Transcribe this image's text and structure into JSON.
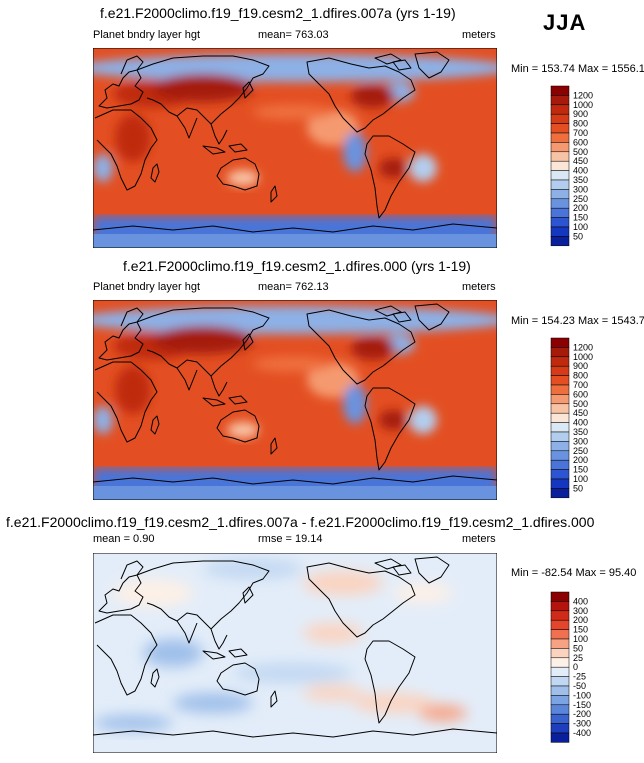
{
  "season": "JJA",
  "chart_data": [
    {
      "type": "heatmap",
      "title": "f.e21.F2000climo.f19_f19.cesm2_1.dfires.007a (yrs 1-19)",
      "variable": "Planet bndry layer hgt",
      "mean_label": "mean= 763.03",
      "units": "meters",
      "minmax_label": "Min = 153.74 Max = 1556.12",
      "min": 153.74,
      "max": 1556.12,
      "mean": 763.03,
      "colorbar_levels": [
        "1200",
        "1000",
        "900",
        "800",
        "700",
        "600",
        "500",
        "450",
        "400",
        "350",
        "300",
        "250",
        "200",
        "150",
        "100",
        "50"
      ],
      "colors": [
        "#8b0000",
        "#a51a0a",
        "#bf2a0e",
        "#d43b16",
        "#e34f22",
        "#ef6e3e",
        "#f59a70",
        "#f8c3a5",
        "#fbe5d6",
        "#dae8f6",
        "#b3cdee",
        "#8db0e6",
        "#6a93df",
        "#4a74d9",
        "#2d55d2",
        "#1537bf",
        "#0a1f9c"
      ],
      "lon_range": [
        0,
        360
      ],
      "lat_range": [
        -90,
        90
      ]
    },
    {
      "type": "heatmap",
      "title": "f.e21.F2000climo.f19_f19.cesm2_1.dfires.000 (yrs 1-19)",
      "variable": "Planet bndry layer hgt",
      "mean_label": "mean= 762.13",
      "units": "meters",
      "minmax_label": "Min = 154.23 Max = 1543.76",
      "min": 154.23,
      "max": 1543.76,
      "mean": 762.13,
      "colorbar_levels": [
        "1200",
        "1000",
        "900",
        "800",
        "700",
        "600",
        "500",
        "450",
        "400",
        "350",
        "300",
        "250",
        "200",
        "150",
        "100",
        "50"
      ],
      "colors": [
        "#8b0000",
        "#a51a0a",
        "#bf2a0e",
        "#d43b16",
        "#e34f22",
        "#ef6e3e",
        "#f59a70",
        "#f8c3a5",
        "#fbe5d6",
        "#dae8f6",
        "#b3cdee",
        "#8db0e6",
        "#6a93df",
        "#4a74d9",
        "#2d55d2",
        "#1537bf",
        "#0a1f9c"
      ],
      "lon_range": [
        0,
        360
      ],
      "lat_range": [
        -90,
        90
      ]
    },
    {
      "type": "heatmap",
      "title": "f.e21.F2000climo.f19_f19.cesm2_1.dfires.007a - f.e21.F2000climo.f19_f19.cesm2_1.dfires.000",
      "mean_label": "mean =   0.90",
      "rmse_label": "rmse =  19.14",
      "units": "meters",
      "minmax_label": "Min = -82.54 Max =  95.40",
      "min": -82.54,
      "max": 95.4,
      "mean": 0.9,
      "rmse": 19.14,
      "colorbar_levels": [
        "400",
        "300",
        "200",
        "150",
        "100",
        "50",
        "25",
        "0",
        "-25",
        "-50",
        "-100",
        "-150",
        "-200",
        "-300",
        "-400"
      ],
      "colors": [
        "#8b0000",
        "#b5140c",
        "#d12a18",
        "#e5452a",
        "#f07050",
        "#f7a283",
        "#fbd3bf",
        "#fdf0e6",
        "#e3edf9",
        "#c2d8f2",
        "#9fbfea",
        "#7ca3e2",
        "#5a85da",
        "#3a62cf",
        "#1e3fbd",
        "#0a1f9c"
      ],
      "lon_range": [
        0,
        360
      ],
      "lat_range": [
        -90,
        90
      ]
    }
  ]
}
